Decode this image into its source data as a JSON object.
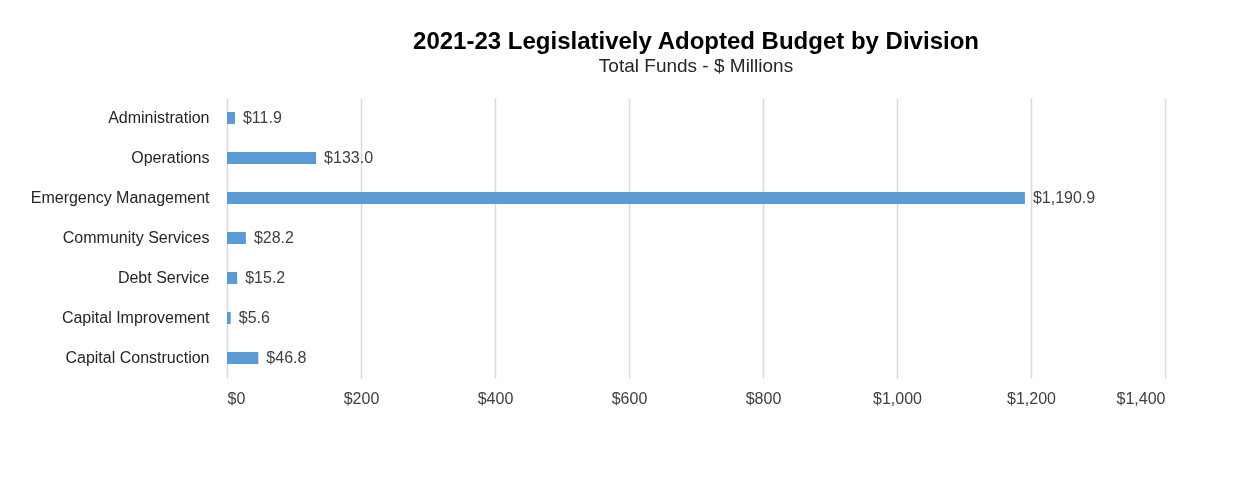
{
  "chart_data": {
    "type": "bar",
    "orientation": "horizontal",
    "title": "2021-23 Legislatively Adopted Budget by Division",
    "subtitle": "Total Funds - $ Millions",
    "categories": [
      "Administration",
      "Operations",
      "Emergency Management",
      "Community Services",
      "Debt Service",
      "Capital Improvement",
      "Capital Construction"
    ],
    "values": [
      11.9,
      133.0,
      1190.9,
      28.2,
      15.2,
      5.6,
      46.8
    ],
    "value_labels": [
      "$11.9",
      "$133.0",
      "$1,190.9",
      "$28.2",
      "$15.2",
      "$5.6",
      "$46.8"
    ],
    "color": "#5b9bd5",
    "xlim": [
      0,
      1400
    ],
    "xticks": [
      {
        "value": 0,
        "label": "$0"
      },
      {
        "value": 200,
        "label": "$200"
      },
      {
        "value": 400,
        "label": "$400"
      },
      {
        "value": 600,
        "label": "$600"
      },
      {
        "value": 800,
        "label": "$800"
      },
      {
        "value": 1000,
        "label": "$1,000"
      },
      {
        "value": 1200,
        "label": "$1,200"
      },
      {
        "value": 1400,
        "label": "$1,400"
      }
    ],
    "grid": "x"
  }
}
